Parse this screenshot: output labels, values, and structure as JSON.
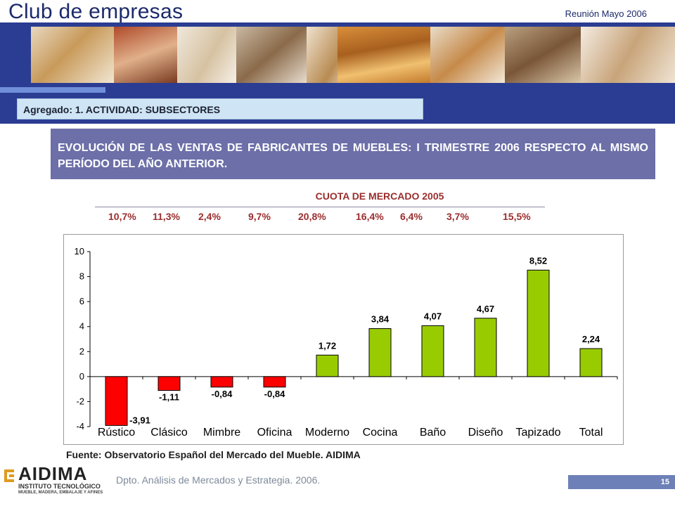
{
  "header": {
    "title": "Club de empresas",
    "meeting": "Reunión Mayo 2006"
  },
  "subheader": {
    "label": "Agregado: 1. ACTIVIDAD: SUBSECTORES"
  },
  "slide_title": "EVOLUCIÓN DE LAS VENTAS DE FABRICANTES DE MUEBLES: I TRIMESTRE 2006 RESPECTO AL MISMO PERÍODO DEL AÑO ANTERIOR.",
  "market_share": {
    "title": "CUOTA DE MERCADO 2005",
    "values": [
      "10,7%",
      "11,3%",
      "2,4%",
      "9,7%",
      "20,8%",
      "16,4%",
      "6,4%",
      "3,7%",
      "15,5%"
    ]
  },
  "chart_data": {
    "type": "bar",
    "categories": [
      "Rústico",
      "Clásico",
      "Mimbre",
      "Oficina",
      "Moderno",
      "Cocina",
      "Baño",
      "Diseño",
      "Tapizado",
      "Total"
    ],
    "values": [
      -3.91,
      -1.11,
      -0.84,
      -0.84,
      1.72,
      3.84,
      4.07,
      4.67,
      8.52,
      2.24
    ],
    "labels": [
      "-3,91",
      "-1,11",
      "-0,84",
      "-0,84",
      "1,72",
      "3,84",
      "4,07",
      "4,67",
      "8,52",
      "2,24"
    ],
    "ylim": [
      -4,
      10
    ],
    "yticks": [
      10,
      8,
      6,
      4,
      2,
      0,
      -2,
      -4
    ],
    "grid": false,
    "colors": {
      "positive": "#99cc00",
      "negative": "#ff0000"
    }
  },
  "source": "Fuente: Observatorio Español del Mercado del Mueble. AIDIMA",
  "footer": {
    "logo_name": "AIDIMA",
    "logo_sub1": "INSTITUTO TECNOLÓGICO",
    "logo_sub2": "MUEBLE, MADERA, EMBALAJE Y AFINES",
    "department": "Dpto. Análisis de Mercados y Estrategia. 2006.",
    "page_number": "15"
  }
}
